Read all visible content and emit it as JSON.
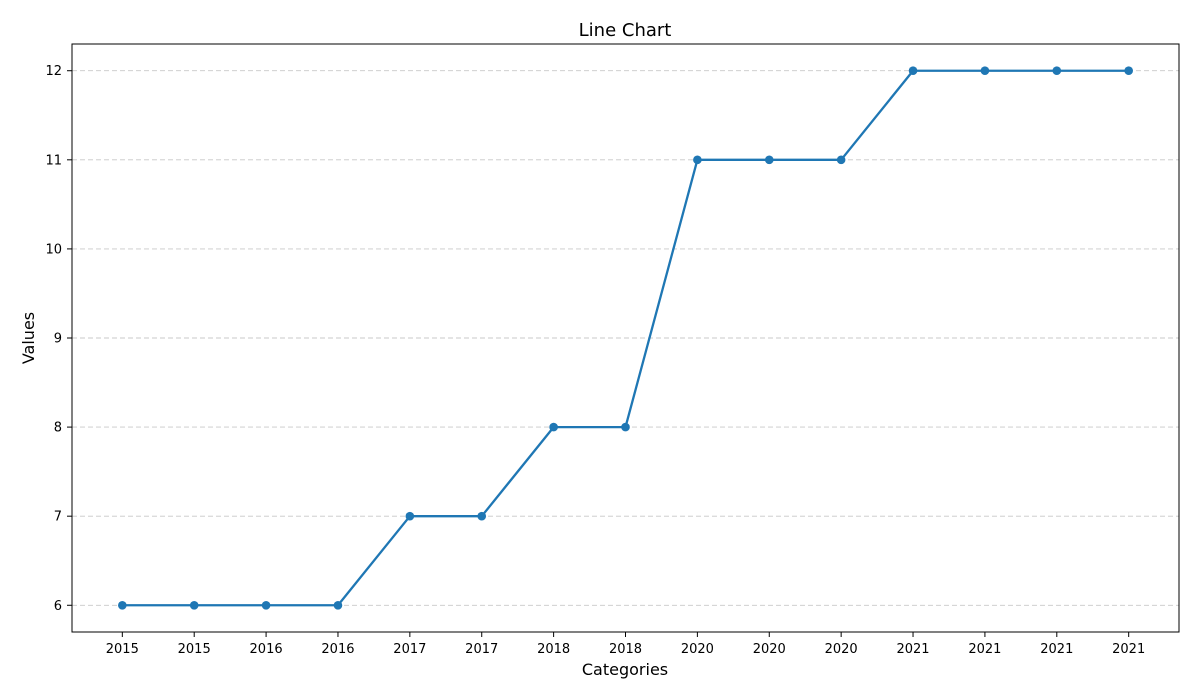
{
  "chart_data": {
    "type": "line",
    "title": "Line Chart",
    "xlabel": "Categories",
    "ylabel": "Values",
    "categories": [
      "2015",
      "2015",
      "2016",
      "2016",
      "2017",
      "2017",
      "2018",
      "2018",
      "2020",
      "2020",
      "2020",
      "2021",
      "2021",
      "2021",
      "2021"
    ],
    "series": [
      {
        "values": [
          6,
          6,
          6,
          6,
          7,
          7,
          8,
          8,
          11,
          11,
          11,
          12,
          12,
          12,
          12
        ]
      }
    ],
    "ylim": [
      5.7,
      12.3
    ],
    "yticks": [
      6,
      7,
      8,
      9,
      10,
      11,
      12
    ],
    "grid": "y-dashed",
    "legend": "none",
    "line_color": "#1f77b4"
  }
}
